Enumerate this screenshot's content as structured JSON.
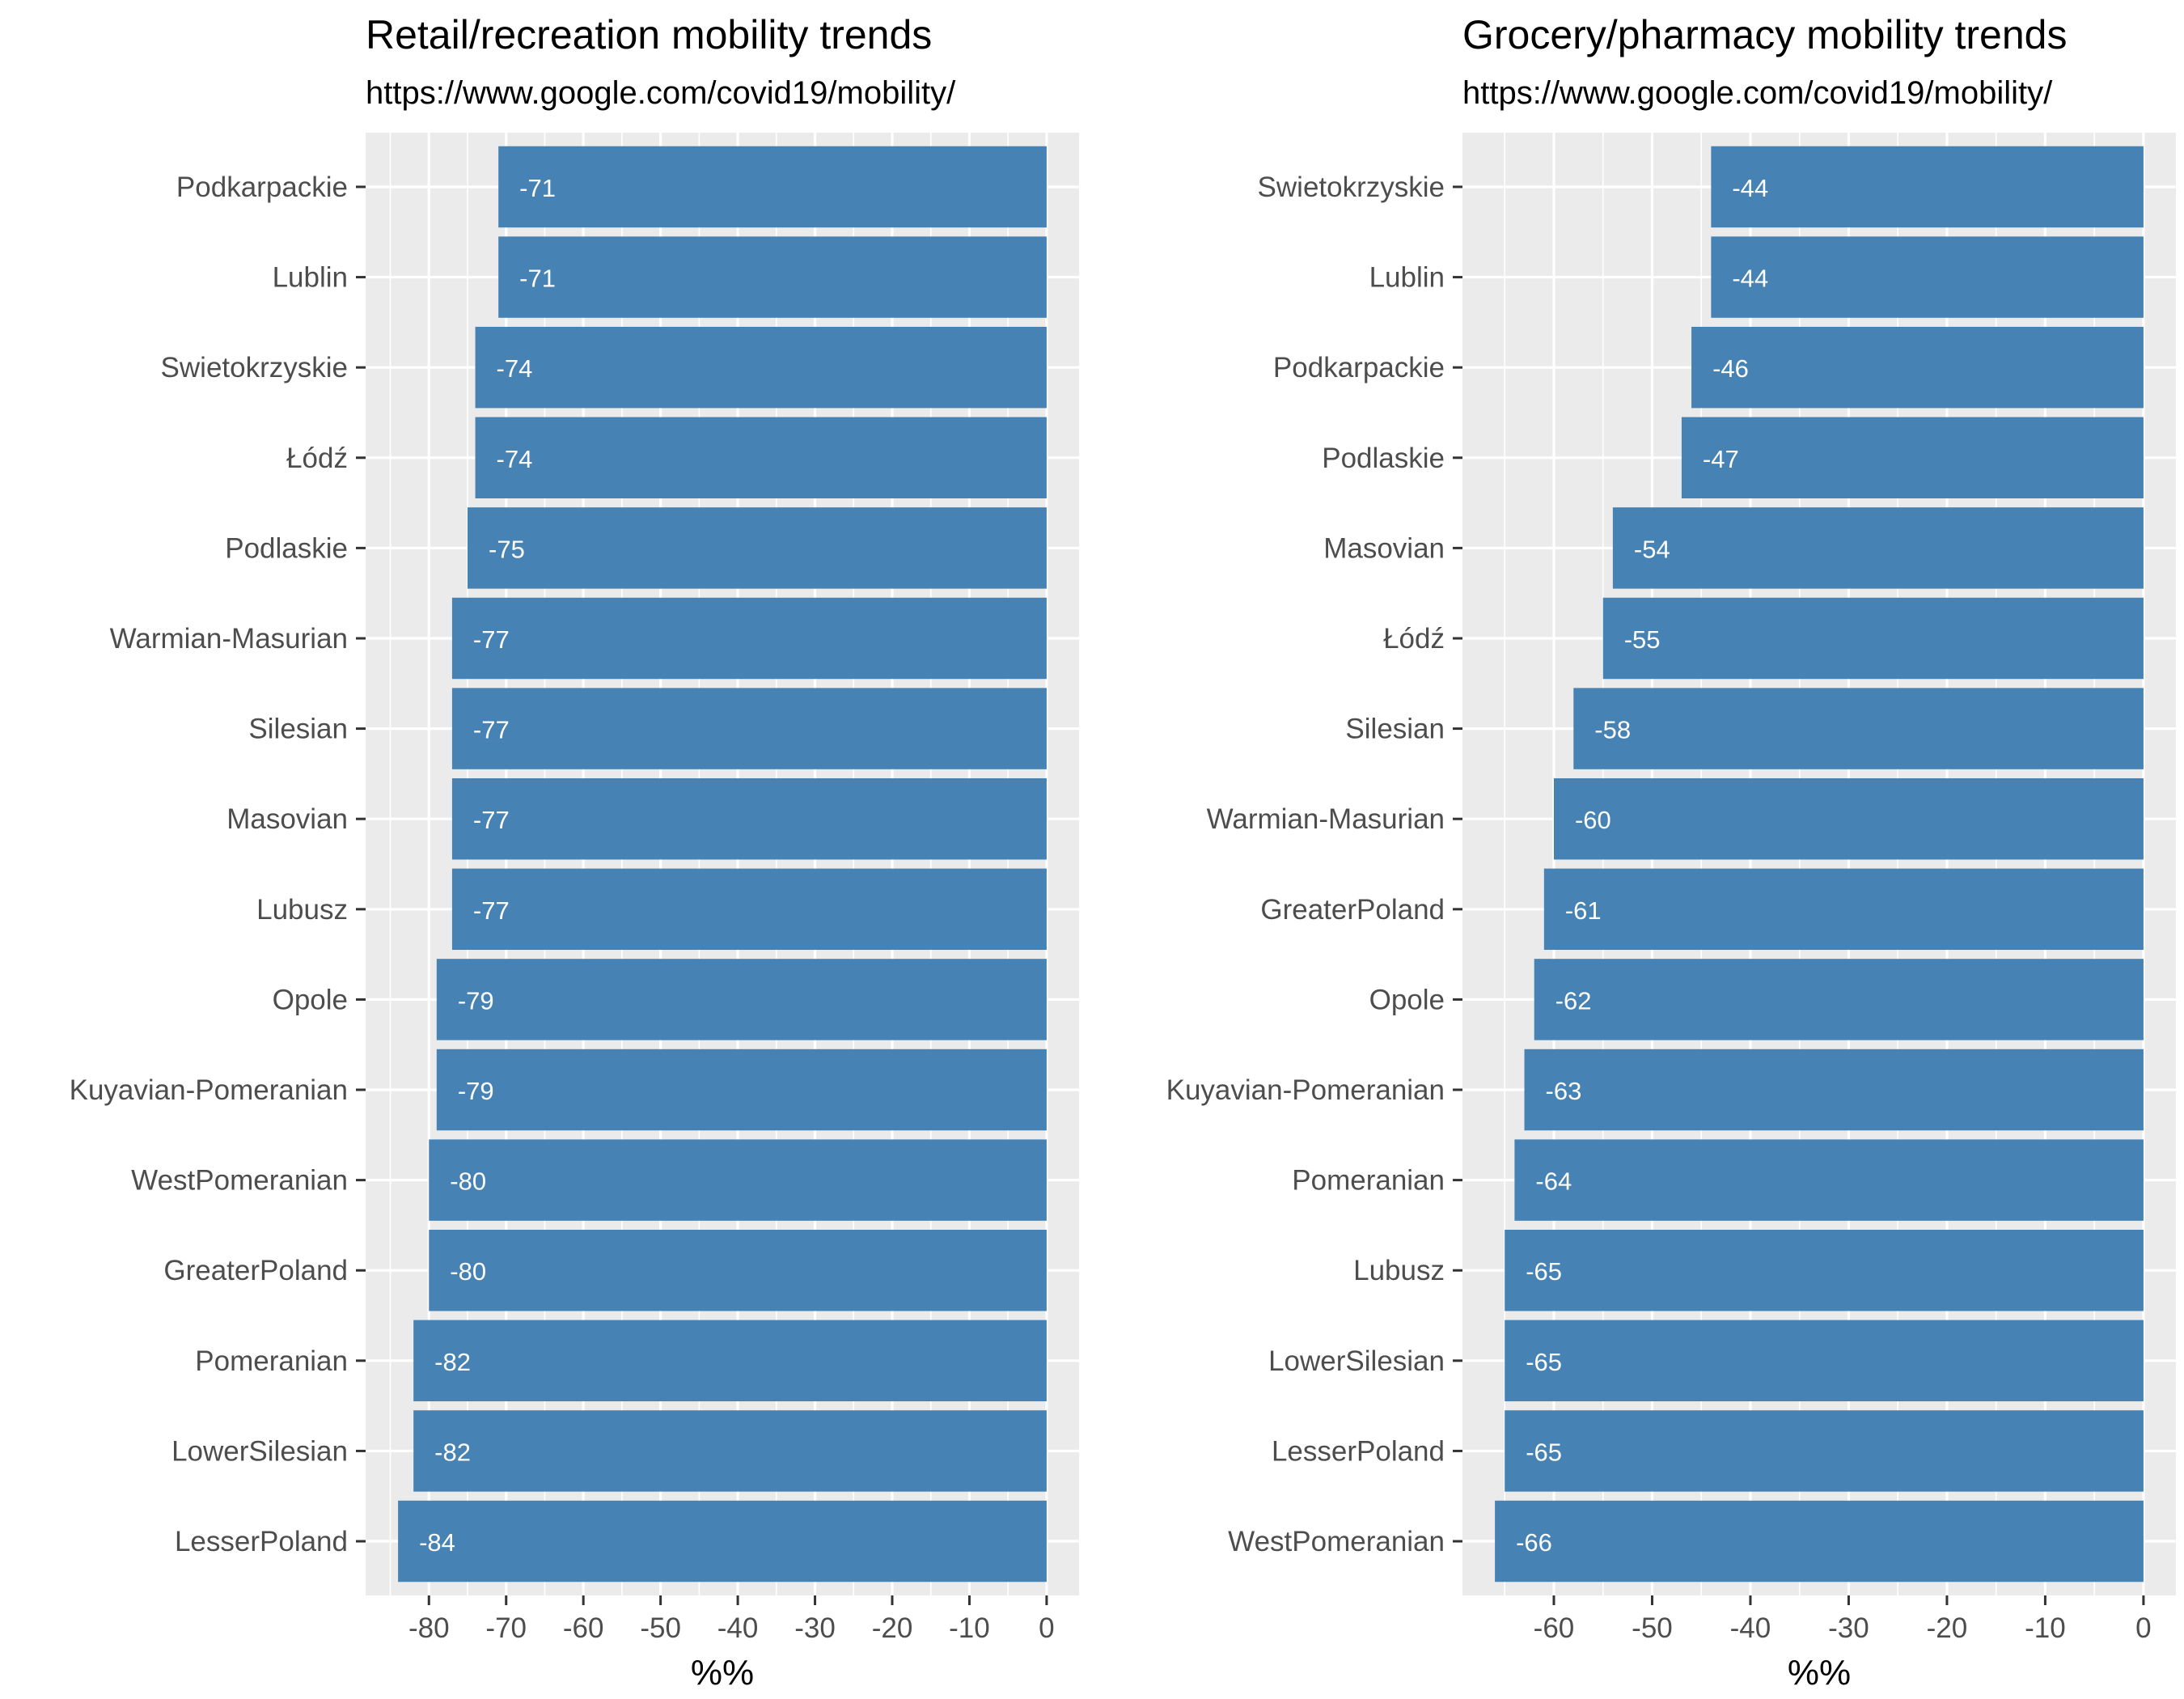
{
  "chart_data": [
    {
      "type": "bar",
      "orientation": "horizontal",
      "title": "Retail/recreation mobility trends",
      "subtitle": "https://www.google.com/covid19/mobility/",
      "xlabel": "%%",
      "ylabel": "",
      "xlim": [
        -88.2,
        4.2
      ],
      "xticks": [
        -80,
        -70,
        -60,
        -50,
        -40,
        -30,
        -20,
        -10,
        0
      ],
      "grid": true,
      "bar_color": "#4682b4",
      "panel_background": "#ebebeb",
      "categories": [
        "Podkarpackie",
        "Lublin",
        "Swietokrzyskie",
        "Łódź",
        "Podlaskie",
        "Warmian-Masurian",
        "Silesian",
        "Masovian",
        "Lubusz",
        "Opole",
        "Kuyavian-Pomeranian",
        "WestPomeranian",
        "GreaterPoland",
        "Pomeranian",
        "LowerSilesian",
        "LesserPoland"
      ],
      "values": [
        -71,
        -71,
        -74,
        -74,
        -75,
        -77,
        -77,
        -77,
        -77,
        -79,
        -79,
        -80,
        -80,
        -82,
        -82,
        -84
      ]
    },
    {
      "type": "bar",
      "orientation": "horizontal",
      "title": "Grocery/pharmacy mobility trends",
      "subtitle": "https://www.google.com/covid19/mobility/",
      "xlabel": "%%",
      "ylabel": "",
      "xlim": [
        -69.3,
        3.3
      ],
      "xticks": [
        -60,
        -50,
        -40,
        -30,
        -20,
        -10,
        0
      ],
      "grid": true,
      "bar_color": "#4682b4",
      "panel_background": "#ebebeb",
      "categories": [
        "Swietokrzyskie",
        "Lublin",
        "Podkarpackie",
        "Podlaskie",
        "Masovian",
        "Łódź",
        "Silesian",
        "Warmian-Masurian",
        "GreaterPoland",
        "Opole",
        "Kuyavian-Pomeranian",
        "Pomeranian",
        "Lubusz",
        "LowerSilesian",
        "LesserPoland",
        "WestPomeranian"
      ],
      "values": [
        -44,
        -44,
        -46,
        -47,
        -54,
        -55,
        -58,
        -60,
        -61,
        -62,
        -63,
        -64,
        -65,
        -65,
        -65,
        -66
      ]
    }
  ]
}
